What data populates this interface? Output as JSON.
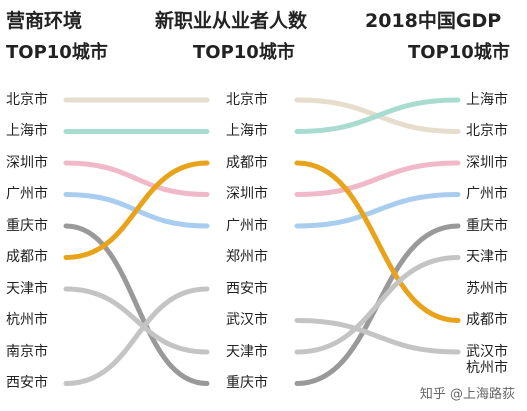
{
  "headers": {
    "left": {
      "line1": "营商环境",
      "line2": "TOP10城市"
    },
    "middle": {
      "line1": "新职业从业者人数",
      "line2": "TOP10城市"
    },
    "right": {
      "line1": "2018中国GDP",
      "line2": "TOP10城市"
    }
  },
  "columns": {
    "left": [
      "北京市",
      "上海市",
      "深圳市",
      "广州市",
      "重庆市",
      "成都市",
      "天津市",
      "杭州市",
      "南京市",
      "西安市"
    ],
    "middle": [
      "北京市",
      "上海市",
      "成都市",
      "深圳市",
      "广州市",
      "郑州市",
      "西安市",
      "武汉市",
      "天津市",
      "重庆市"
    ],
    "right": [
      "上海市",
      "北京市",
      "深圳市",
      "广州市",
      "重庆市",
      "天津市",
      "苏州市",
      "成都市",
      "武汉市",
      "杭州市"
    ]
  },
  "flows": [
    {
      "city": "北京市",
      "color": "#e6ddcc",
      "left": 1,
      "middle": 1,
      "right": 2
    },
    {
      "city": "上海市",
      "color": "#a8dcd0",
      "left": 2,
      "middle": 2,
      "right": 1
    },
    {
      "city": "深圳市",
      "color": "#f0b8c8",
      "left": 3,
      "middle": 4,
      "right": 3
    },
    {
      "city": "广州市",
      "color": "#a9cdee",
      "left": 4,
      "middle": 5,
      "right": 4
    },
    {
      "city": "重庆市",
      "color": "#999999",
      "left": 5,
      "middle": 10,
      "right": 5
    },
    {
      "city": "成都市",
      "color": "#e9a31a",
      "left": 6,
      "middle": 3,
      "right": 8
    },
    {
      "city": "天津市",
      "color": "#c4c4c4",
      "left": 7,
      "middle": 9,
      "right": 6
    },
    {
      "city": "西安市",
      "color": "#c4c4c4",
      "left": 10,
      "middle": 7,
      "right": null
    },
    {
      "city": "武汉市",
      "color": "#c4c4c4",
      "left": null,
      "middle": 8,
      "right": 9
    }
  ],
  "watermark": {
    "platform": "知乎",
    "author": "@上海路荻"
  }
}
